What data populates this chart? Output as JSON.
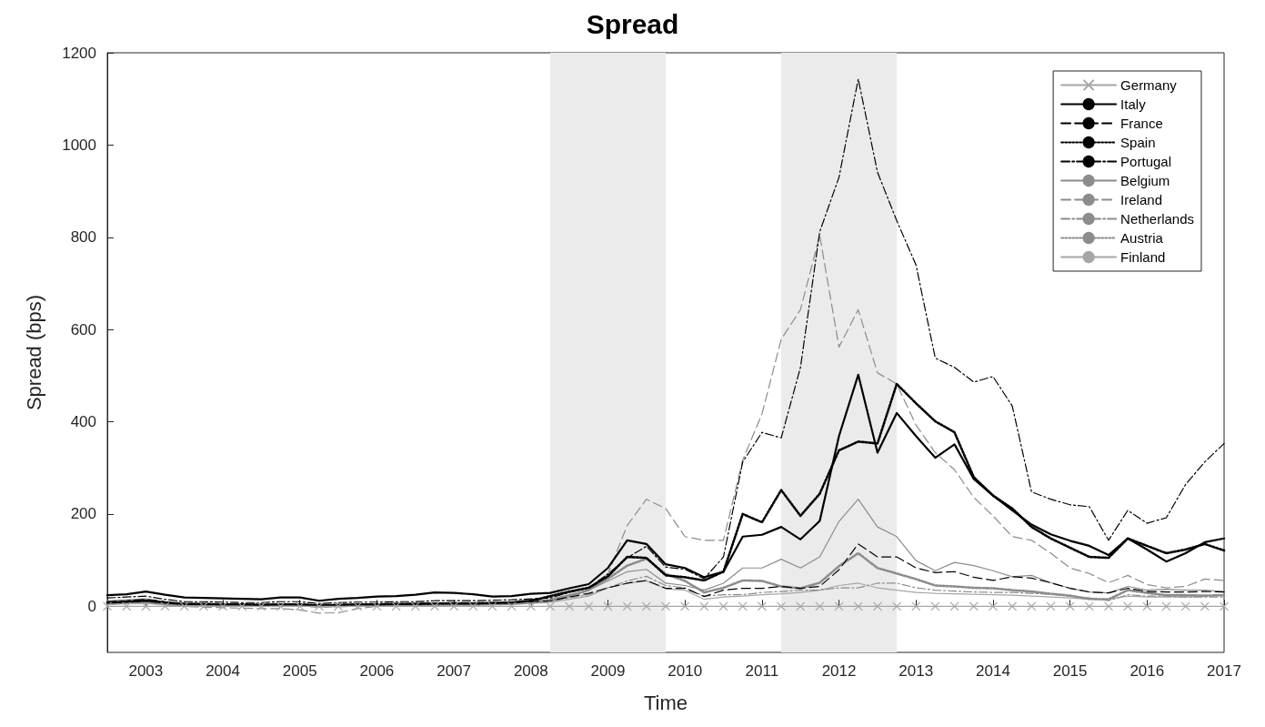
{
  "chart_data": {
    "type": "line",
    "title": "Spread",
    "xlabel": "Time",
    "ylabel": "Spread (bps)",
    "xlim": [
      2002.5,
      2017
    ],
    "xticks": [
      2003,
      2004,
      2005,
      2006,
      2007,
      2008,
      2009,
      2010,
      2011,
      2012,
      2013,
      2014,
      2015,
      2016,
      2017
    ],
    "ylim": [
      -100,
      1200
    ],
    "yticks": [
      0,
      200,
      400,
      600,
      800,
      1000,
      1200
    ],
    "grid": false,
    "legend": "top right",
    "bands": [
      {
        "axis": "x",
        "from": 2008.25,
        "to": 2009.75,
        "color": "#ebebeb"
      },
      {
        "axis": "x",
        "from": 2011.25,
        "to": 2012.75,
        "color": "#ebebeb"
      }
    ],
    "x": [
      2002.5,
      2002.75,
      2003,
      2003.25,
      2003.5,
      2003.75,
      2004,
      2004.25,
      2004.5,
      2004.75,
      2005,
      2005.25,
      2005.5,
      2005.75,
      2006,
      2006.25,
      2006.5,
      2006.75,
      2007,
      2007.25,
      2007.5,
      2007.75,
      2008,
      2008.25,
      2008.5,
      2008.75,
      2009,
      2009.25,
      2009.5,
      2009.75,
      2010,
      2010.25,
      2010.5,
      2010.75,
      2011,
      2011.25,
      2011.5,
      2011.75,
      2012,
      2012.25,
      2012.5,
      2012.75,
      2013,
      2013.25,
      2013.5,
      2013.75,
      2014,
      2014.25,
      2014.5,
      2014.75,
      2015,
      2015.25,
      2015.5,
      2015.75,
      2016,
      2016.25,
      2016.5,
      2016.75,
      2017
    ],
    "series": [
      {
        "name": "Germany",
        "color": "#a6a6a6",
        "line_style": "solid",
        "marker": "cross",
        "values": [
          0,
          0,
          0,
          0,
          0,
          0,
          0,
          0,
          0,
          0,
          0,
          0,
          0,
          0,
          0,
          0,
          0,
          0,
          0,
          0,
          0,
          0,
          0,
          0,
          0,
          0,
          0,
          0,
          0,
          0,
          0,
          0,
          0,
          0,
          0,
          0,
          0,
          0,
          0,
          0,
          0,
          0,
          0,
          0,
          0,
          0,
          0,
          0,
          0,
          0,
          0,
          0,
          0,
          0,
          0,
          0,
          0,
          0,
          0
        ]
      },
      {
        "name": "Italy",
        "color": "#000000",
        "line_style": "solid",
        "marker": "none",
        "values": [
          24,
          26,
          32,
          25,
          19,
          18,
          17,
          16,
          15,
          19,
          19,
          12,
          16,
          18,
          21,
          22,
          25,
          30,
          29,
          26,
          21,
          22,
          27,
          29,
          39,
          48,
          83,
          143,
          135,
          91,
          83,
          63,
          75,
          151,
          155,
          172,
          145,
          185,
          369,
          502,
          333,
          419,
          369,
          322,
          351,
          276,
          240,
          208,
          177,
          156,
          142,
          131,
          111,
          147,
          123,
          97,
          115,
          139,
          147
        ]
      },
      {
        "name": "France",
        "color": "#000000",
        "line_style": "dashed",
        "marker": "none",
        "values": [
          10,
          12,
          15,
          10,
          6,
          5,
          5,
          4,
          4,
          5,
          5,
          2,
          3,
          4,
          5,
          6,
          6,
          7,
          8,
          8,
          8,
          9,
          10,
          12,
          20,
          28,
          40,
          50,
          56,
          39,
          39,
          21,
          35,
          39,
          39,
          43,
          39,
          43,
          79,
          135,
          107,
          107,
          83,
          73,
          75,
          63,
          56,
          64,
          61,
          51,
          39,
          31,
          29,
          39,
          32,
          31,
          31,
          32,
          31
        ]
      },
      {
        "name": "Spain",
        "color": "#000000",
        "line_style": "dotted",
        "marker": "none",
        "values": [
          8,
          10,
          12,
          8,
          5,
          5,
          4,
          4,
          3,
          4,
          4,
          2,
          3,
          4,
          4,
          5,
          5,
          6,
          6,
          6,
          7,
          8,
          12,
          22,
          32,
          40,
          65,
          107,
          105,
          67,
          63,
          56,
          75,
          200,
          182,
          252,
          196,
          244,
          338,
          357,
          353,
          482,
          440,
          401,
          377,
          280,
          240,
          212,
          172,
          147,
          127,
          107,
          105,
          147,
          131,
          115,
          123,
          135,
          121
        ]
      },
      {
        "name": "Portugal",
        "color": "#000000",
        "line_style": "dashdot",
        "marker": "none",
        "values": [
          18,
          20,
          22,
          15,
          10,
          10,
          9,
          8,
          8,
          10,
          10,
          6,
          8,
          9,
          9,
          10,
          10,
          12,
          12,
          12,
          13,
          14,
          16,
          18,
          30,
          40,
          70,
          105,
          130,
          85,
          80,
          60,
          107,
          313,
          377,
          365,
          518,
          812,
          930,
          1143,
          941,
          836,
          740,
          538,
          518,
          486,
          498,
          434,
          248,
          232,
          220,
          216,
          143,
          208,
          180,
          192,
          264,
          313,
          353
        ]
      },
      {
        "name": "Belgium",
        "color": "#8c8c8c",
        "line_style": "solid",
        "marker": "none",
        "values": [
          12,
          14,
          16,
          10,
          6,
          6,
          5,
          5,
          4,
          5,
          5,
          2,
          3,
          4,
          5,
          5,
          6,
          6,
          7,
          7,
          8,
          9,
          12,
          15,
          25,
          35,
          55,
          75,
          80,
          50,
          45,
          35,
          50,
          83,
          83,
          102,
          83,
          107,
          184,
          232,
          172,
          151,
          99,
          77,
          95,
          88,
          77,
          64,
          67,
          51,
          39,
          31,
          29,
          43,
          35,
          37,
          35,
          35,
          32
        ]
      },
      {
        "name": "Ireland",
        "color": "#8c8c8c",
        "line_style": "dashed",
        "marker": "none",
        "values": [
          5,
          7,
          8,
          3,
          0,
          -2,
          -3,
          -4,
          -5,
          -5,
          -8,
          -15,
          -14,
          -5,
          0,
          2,
          3,
          4,
          5,
          5,
          8,
          10,
          14,
          20,
          30,
          40,
          70,
          175,
          232,
          212,
          151,
          143,
          143,
          317,
          417,
          579,
          643,
          804,
          562,
          643,
          506,
          482,
          393,
          333,
          296,
          236,
          196,
          151,
          143,
          115,
          83,
          71,
          51,
          67,
          47,
          40,
          43,
          59,
          56
        ]
      },
      {
        "name": "Netherlands",
        "color": "#8c8c8c",
        "line_style": "dashdot",
        "marker": "none",
        "values": [
          8,
          9,
          10,
          5,
          2,
          2,
          1,
          1,
          0,
          1,
          1,
          -2,
          -1,
          0,
          1,
          2,
          2,
          3,
          3,
          3,
          4,
          5,
          7,
          10,
          18,
          25,
          40,
          55,
          65,
          45,
          40,
          22,
          25,
          25,
          30,
          32,
          35,
          35,
          40,
          40,
          50,
          50,
          40,
          35,
          33,
          31,
          30,
          30,
          28,
          26,
          22,
          18,
          12,
          25,
          22,
          22,
          20,
          20,
          20
        ]
      },
      {
        "name": "Austria",
        "color": "#8c8c8c",
        "line_style": "dotted",
        "marker": "none",
        "values": [
          6,
          8,
          10,
          5,
          3,
          2,
          2,
          2,
          1,
          2,
          2,
          0,
          1,
          2,
          2,
          3,
          3,
          4,
          4,
          4,
          5,
          6,
          8,
          12,
          22,
          35,
          60,
          88,
          103,
          70,
          55,
          30,
          40,
          56,
          55,
          43,
          39,
          51,
          87,
          115,
          83,
          71,
          59,
          45,
          43,
          40,
          39,
          35,
          32,
          27,
          23,
          16,
          15,
          35,
          29,
          24,
          24,
          23,
          24
        ]
      },
      {
        "name": "Finland",
        "color": "#a6a6a6",
        "line_style": "solid",
        "marker": "none",
        "values": [
          4,
          5,
          6,
          3,
          1,
          1,
          1,
          1,
          0,
          1,
          1,
          -1,
          0,
          1,
          1,
          2,
          2,
          2,
          3,
          3,
          3,
          4,
          6,
          8,
          15,
          22,
          40,
          50,
          55,
          38,
          35,
          15,
          20,
          22,
          25,
          27,
          30,
          35,
          45,
          50,
          40,
          35,
          30,
          28,
          27,
          26,
          25,
          24,
          22,
          20,
          18,
          15,
          15,
          22,
          20,
          20,
          20,
          22,
          25
        ]
      }
    ]
  }
}
